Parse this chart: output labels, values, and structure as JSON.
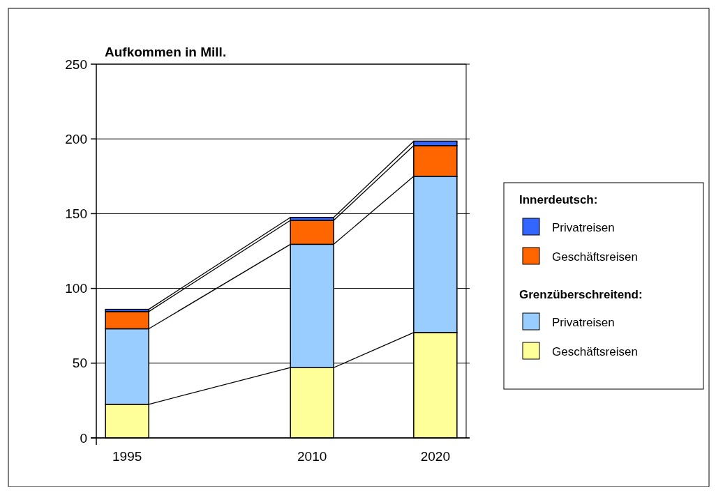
{
  "chart_data": {
    "type": "bar",
    "stacked": true,
    "ylabel": "Aufkommen in Mill.",
    "x": [
      1995,
      2010,
      2020
    ],
    "xlim": [
      1992.5,
      2022.5
    ],
    "xticks": [
      1995,
      2010,
      2020
    ],
    "ylim": [
      0,
      250
    ],
    "yticks": [
      0,
      50,
      100,
      150,
      200,
      250
    ],
    "grid": "y",
    "legend": "right",
    "annotations": [
      "Innerdeutsch:",
      "Grenzüberschreitend:"
    ],
    "series": [
      {
        "name": "Geschäftsreisen",
        "color": "#ffff99",
        "values": [
          22.5,
          47,
          70.5
        ]
      },
      {
        "name": "Privatreisen",
        "color": "#99ccff",
        "values": [
          50.5,
          82.5,
          104.5
        ]
      },
      {
        "name": "Geschäftsreisen",
        "color": "#ff6600",
        "values": [
          11.5,
          16,
          20.5
        ]
      },
      {
        "name": "Privatreisen",
        "color": "#3366ff",
        "values": [
          1.5,
          2,
          3
        ]
      }
    ]
  }
}
